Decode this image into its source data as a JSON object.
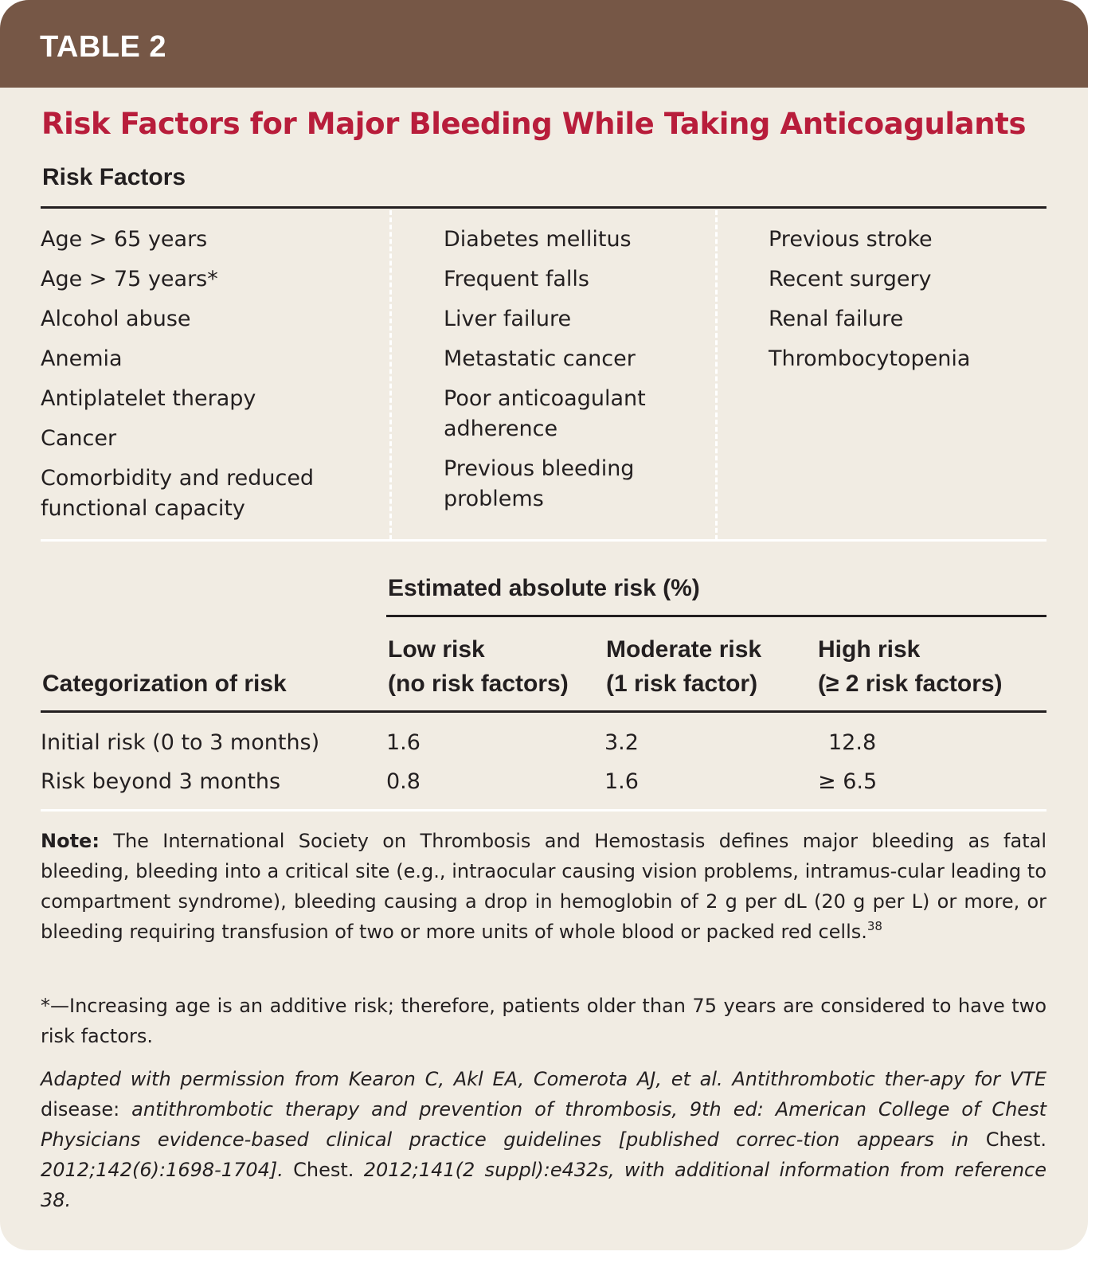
{
  "banner": {
    "label": "TABLE 2"
  },
  "title": "Risk Factors for Major Bleeding While Taking Anticoagulants",
  "risk_factors": {
    "heading": "Risk Factors",
    "col1": [
      "Age > 65 years",
      "Age > 75 years*",
      "Alcohol abuse",
      "Anemia",
      "Antiplatelet therapy",
      "Cancer",
      "Comorbidity and reduced functional capacity"
    ],
    "col2": [
      "Diabetes mellitus",
      "Frequent falls",
      "Liver failure",
      "Metastatic cancer",
      "Poor anticoagulant adherence",
      "Previous bleeding problems"
    ],
    "col3": [
      "Previous stroke",
      "Recent surgery",
      "Renal failure",
      "Thrombocytopenia"
    ]
  },
  "risk_table": {
    "group_header": "Estimated absolute risk (%)",
    "row_header": "Categorization of risk",
    "columns": [
      {
        "line1": "Low risk",
        "line2": "(no risk factors)"
      },
      {
        "line1": "Moderate risk",
        "line2": "(1 risk factor)"
      },
      {
        "line1": "High risk",
        "line2": "(≥ 2 risk factors)"
      }
    ],
    "rows": [
      {
        "label": "Initial risk (0 to 3 months)",
        "values": [
          "1.6",
          "3.2",
          "12.8"
        ]
      },
      {
        "label": "Risk beyond 3 months",
        "values": [
          "0.8",
          "1.6",
          "≥ 6.5"
        ]
      }
    ]
  },
  "notes": {
    "note_label": "Note:",
    "note_text": "The International Society on Thrombosis and Hemostasis defines major bleeding as fatal bleeding, bleeding into a critical site (e.g., intraocular causing vision problems, intramus-cular leading to compartment syndrome), bleeding causing a drop in hemoglobin of 2 g per dL (20 g per L) or more, or bleeding requiring transfusion of two or more units of whole blood or packed red cells.",
    "note_ref": "38",
    "footnote": "*—Increasing age is an additive risk; therefore, patients older than 75 years are considered to have two risk factors.",
    "source_italic_1": "Adapted with permission from Kearon C, Akl EA, Comerota AJ, et al. Antithrombotic ther-apy for VTE",
    "source_plain_1": " disease: ",
    "source_italic_2": "antithrombotic therapy and prevention of thrombosis, 9th ed: American College of Chest Physicians evidence-based clinical practice guidelines [published correc-tion appears in",
    "source_plain_2": " Chest. ",
    "source_italic_3": "2012;142(6):1698-1704].",
    "source_plain_3": " Chest. ",
    "source_italic_4": "2012;141(2 suppl):e432s, with additional information from reference 38."
  }
}
